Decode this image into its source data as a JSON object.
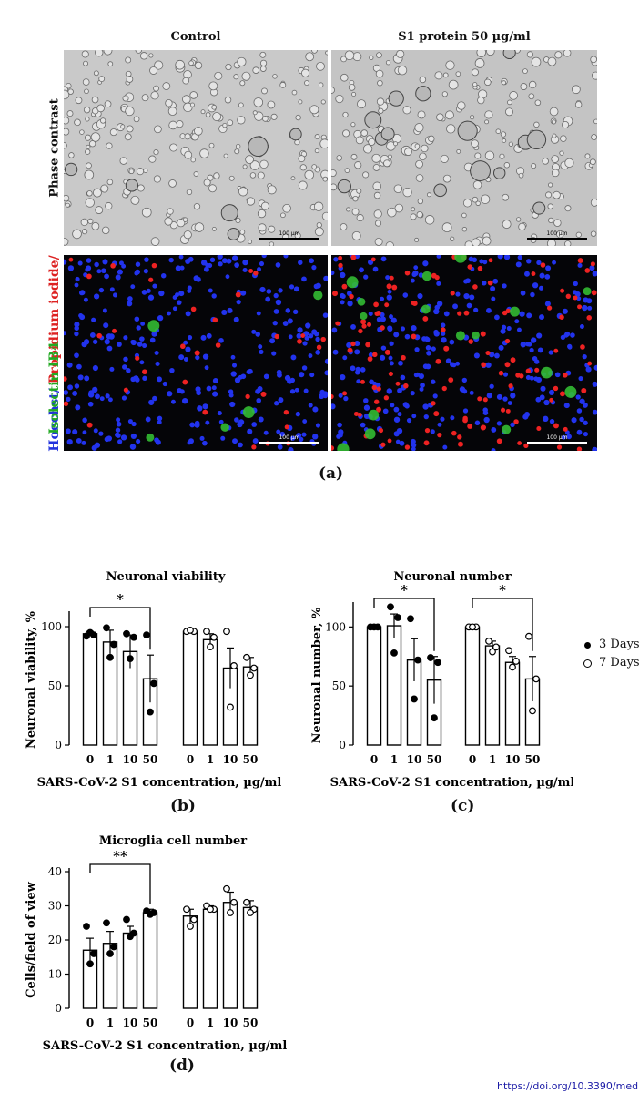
{
  "figure": {
    "col_titles": [
      "Control",
      "S1 protein 50 µg/ml"
    ],
    "row_label_phase": "Phase contrast",
    "row_label_fluor": {
      "part1": "Hoechst/",
      "part2": "Propidium iodide/",
      "part3": "Isolectin IB4"
    },
    "scale_text": "100 µm",
    "panel_a": "(a)",
    "panel_b": "(b)",
    "panel_c": "(c)",
    "panel_d": "(d)",
    "legend": {
      "filled": "3 Days",
      "open": "7 Days"
    },
    "doi": "https://doi.org/10.3390/med",
    "colors": {
      "hoechst": "#2233ee",
      "propidium": "#ee2222",
      "isolectin": "#33bb33",
      "axis": "#000000"
    }
  },
  "chart_data": [
    {
      "type": "bar",
      "title": "Neuronal viability",
      "ylabel": "Neuronal viability, %",
      "xlabel": "SARS-CoV-2 S1 concentration, µg/ml",
      "categories": [
        "0",
        "1",
        "10",
        "50",
        "0",
        "1",
        "10",
        "50"
      ],
      "ylim": [
        0,
        110
      ],
      "yticks": [
        0,
        50,
        100
      ],
      "series": [
        {
          "name": "3 Days",
          "means": [
            94,
            87,
            79,
            56
          ],
          "sem": [
            2,
            10,
            14,
            20
          ],
          "points": [
            [
              92,
              93,
              95
            ],
            [
              99,
              85,
              74
            ],
            [
              94,
              91,
              73
            ],
            [
              93,
              52,
              28
            ]
          ],
          "marker": "filled"
        },
        {
          "name": "7 Days",
          "means": [
            96,
            89,
            65,
            66
          ],
          "sem": [
            2,
            5,
            17,
            8
          ],
          "points": [
            [
              96,
              96,
              97
            ],
            [
              96,
              91,
              83
            ],
            [
              96,
              67,
              32
            ],
            [
              74,
              65,
              59
            ]
          ],
          "marker": "open"
        }
      ],
      "significance": [
        {
          "from": 0,
          "to": 3,
          "label": "*"
        }
      ]
    },
    {
      "type": "bar",
      "title": "Neuronal  number",
      "ylabel": "Neuronal number, %",
      "xlabel": "SARS-CoV-2 S1 concentration, µg/ml",
      "categories": [
        "0",
        "1",
        "10",
        "50",
        "0",
        "1",
        "10",
        "50"
      ],
      "ylim": [
        0,
        118
      ],
      "yticks": [
        0,
        50,
        100
      ],
      "series": [
        {
          "name": "3 Days",
          "means": [
            100,
            101,
            72,
            55
          ],
          "sem": [
            0,
            10,
            18,
            20
          ],
          "points": [
            [
              100,
              100,
              100
            ],
            [
              117,
              108,
              78
            ],
            [
              107,
              72,
              39
            ],
            [
              74,
              70,
              23
            ]
          ],
          "marker": "filled"
        },
        {
          "name": "7 Days",
          "means": [
            100,
            84,
            70,
            56
          ],
          "sem": [
            1,
            4,
            5,
            19
          ],
          "points": [
            [
              100,
              100,
              100
            ],
            [
              88,
              83,
              79
            ],
            [
              80,
              71,
              66
            ],
            [
              92,
              56,
              29
            ]
          ],
          "marker": "open"
        }
      ],
      "significance": [
        {
          "from": 0,
          "to": 3,
          "label": "*"
        },
        {
          "from": 4,
          "to": 7,
          "label": "*"
        }
      ]
    },
    {
      "type": "bar",
      "title": "Microglia cell  number",
      "ylabel": "Cells/field of view",
      "xlabel": "SARS-CoV-2 S1 concentration, µg/ml",
      "categories": [
        "0",
        "1",
        "10",
        "50",
        "0",
        "1",
        "10",
        "50"
      ],
      "ylim": [
        0,
        40
      ],
      "yticks": [
        0,
        10,
        20,
        30,
        40
      ],
      "series": [
        {
          "name": "3 Days",
          "means": [
            17,
            19,
            22,
            28
          ],
          "sem": [
            3.5,
            3.5,
            2,
            1
          ],
          "points": [
            [
              24,
              16,
              13
            ],
            [
              25,
              18,
              16
            ],
            [
              26,
              22,
              21
            ],
            [
              28.5,
              28,
              27.5
            ]
          ],
          "marker": "filled"
        },
        {
          "name": "7 Days",
          "means": [
            27,
            29,
            31,
            29.5
          ],
          "sem": [
            2,
            1,
            3,
            2
          ],
          "points": [
            [
              29,
              26,
              24
            ],
            [
              30,
              29,
              29
            ],
            [
              35,
              31,
              28
            ],
            [
              31,
              29,
              28
            ]
          ],
          "marker": "open"
        }
      ],
      "significance": [
        {
          "from": 0,
          "to": 3,
          "label": "**"
        }
      ]
    }
  ]
}
